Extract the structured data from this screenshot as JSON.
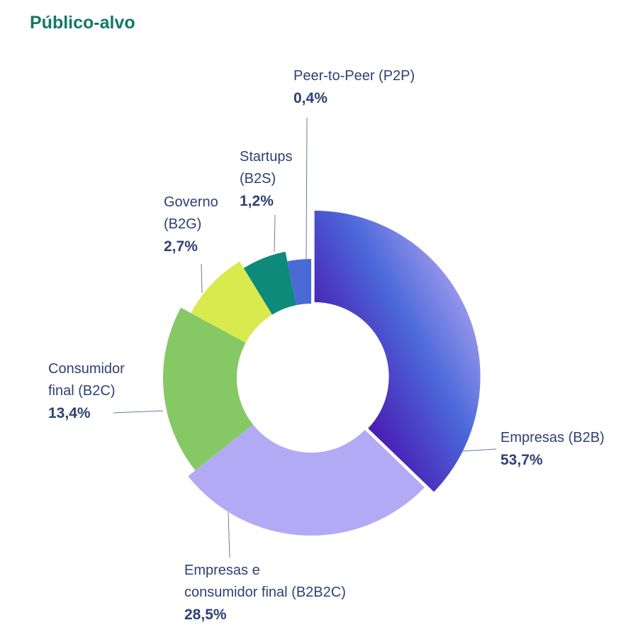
{
  "title": "Público-alvo",
  "chart_data": {
    "type": "pie",
    "variant": "donut",
    "title": "Público-alvo",
    "slices": [
      {
        "label": "Empresas (B2B)",
        "value": 53.7,
        "display": "53,7%",
        "color": "#4a5fd8"
      },
      {
        "label": "Empresas e consumidor final (B2B2C)",
        "value": 28.5,
        "display": "28,5%",
        "color": "#b3aaf5"
      },
      {
        "label": "Consumidor final (B2C)",
        "value": 13.4,
        "display": "13,4%",
        "color": "#86c964"
      },
      {
        "label": "Governo (B2G)",
        "value": 2.7,
        "display": "2,7%",
        "color": "#d8ea4e"
      },
      {
        "label": "Startups (B2S)",
        "value": 1.2,
        "display": "1,2%",
        "color": "#0e8a7b"
      },
      {
        "label": "Peer-to-Peer (P2P)",
        "value": 0.4,
        "display": "0,4%",
        "color": "#4a6ad8"
      }
    ]
  },
  "labels": {
    "b2b": {
      "l1": "Empresas (B2B)",
      "v": "53,7%"
    },
    "b2b2c": {
      "l1": "Empresas e",
      "l2": "consumidor final (B2B2C)",
      "v": "28,5%"
    },
    "b2c": {
      "l1": "Consumidor",
      "l2": "final (B2C)",
      "v": "13,4%"
    },
    "b2g": {
      "l1": "Governo",
      "l2": "(B2G)",
      "v": "2,7%"
    },
    "b2s": {
      "l1": "Startups",
      "l2": "(B2S)",
      "v": "1,2%"
    },
    "p2p": {
      "l1": "Peer-to-Peer (P2P)",
      "v": "0,4%"
    }
  }
}
